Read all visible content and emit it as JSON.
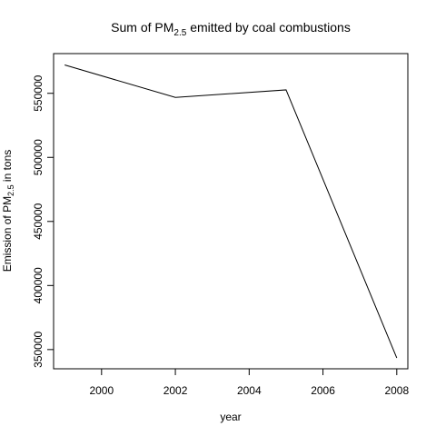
{
  "chart_data": {
    "type": "line",
    "title": {
      "prefix": "Sum of PM",
      "subscript": "2.5",
      "suffix": " emitted by coal combustions"
    },
    "xlabel": "year",
    "ylabel": {
      "prefix": "Emission of PM",
      "subscript": "2.5",
      "suffix": " in tons"
    },
    "x": [
      1999,
      2002,
      2005,
      2008
    ],
    "y": [
      572126,
      546789,
      552675,
      343432
    ],
    "xlim": [
      1998.7,
      2008.3
    ],
    "ylim": [
      335000,
      581000
    ],
    "xticks": [
      2000,
      2002,
      2004,
      2006,
      2008
    ],
    "xtick_labels": [
      "2000",
      "2002",
      "2004",
      "2006",
      "2008"
    ],
    "yticks": [
      350000,
      400000,
      450000,
      500000,
      550000
    ],
    "ytick_labels": [
      "350000",
      "400000",
      "450000",
      "500000",
      "550000"
    ],
    "grid": false,
    "legend": "none",
    "line_color": "#000000"
  }
}
